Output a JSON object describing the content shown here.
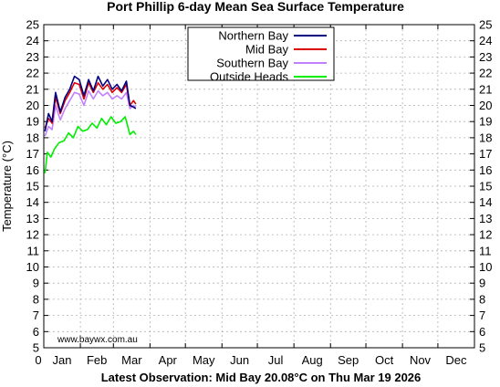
{
  "chart_data": {
    "type": "line",
    "title": "Port Phillip 6-day Mean Sea Surface Temperature",
    "ylabel": "Temperature (°C)",
    "xlabel": "Latest Observation: Mid Bay 20.08°C on Thu Mar 19 2026",
    "credit": "www.baywx.com.au",
    "xlim": [
      0,
      365
    ],
    "ylim": [
      5,
      25
    ],
    "yticks": [
      5,
      6,
      7,
      8,
      9,
      10,
      11,
      12,
      13,
      14,
      15,
      16,
      17,
      18,
      19,
      20,
      21,
      22,
      23,
      24,
      25
    ],
    "x_zero_label": "0",
    "months": [
      "Jan",
      "Feb",
      "Mar",
      "Apr",
      "May",
      "Jun",
      "Jul",
      "Aug",
      "Sep",
      "Oct",
      "Nov",
      "Dec"
    ],
    "grid": true,
    "legend_position": "top-center",
    "series": [
      {
        "name": "Northern Bay",
        "color": "#000080",
        "x": [
          1,
          4,
          7,
          10,
          14,
          18,
          22,
          26,
          30,
          34,
          38,
          42,
          46,
          50,
          54,
          58,
          62,
          66,
          70,
          73,
          76,
          78
        ],
        "values": [
          18.4,
          19.5,
          19.0,
          20.8,
          19.6,
          20.5,
          21.0,
          21.8,
          21.6,
          20.6,
          21.6,
          20.9,
          21.8,
          21.2,
          21.6,
          21.0,
          21.3,
          20.9,
          21.5,
          20.0,
          19.9,
          19.8
        ]
      },
      {
        "name": "Mid Bay",
        "color": "#dd0000",
        "x": [
          1,
          4,
          7,
          10,
          14,
          18,
          22,
          26,
          30,
          34,
          38,
          42,
          46,
          50,
          54,
          58,
          62,
          66,
          70,
          73,
          76,
          78
        ],
        "values": [
          18.6,
          19.2,
          18.9,
          20.5,
          19.5,
          20.3,
          20.8,
          21.4,
          21.3,
          20.4,
          21.4,
          20.8,
          21.4,
          21.0,
          21.3,
          20.8,
          21.1,
          20.8,
          21.3,
          20.0,
          20.3,
          20.08
        ]
      },
      {
        "name": "Southern Bay",
        "color": "#c080ff",
        "x": [
          1,
          4,
          7,
          10,
          14,
          18,
          22,
          26,
          30,
          34,
          38,
          42,
          46,
          50,
          54,
          58,
          62,
          66,
          70,
          73,
          76,
          78
        ],
        "values": [
          18.1,
          18.7,
          18.5,
          20.0,
          19.1,
          19.8,
          20.3,
          20.8,
          20.7,
          20.0,
          20.9,
          20.4,
          20.9,
          20.6,
          20.8,
          20.4,
          20.6,
          20.4,
          20.8,
          19.8,
          20.0,
          19.9
        ]
      },
      {
        "name": "Outside Heads",
        "color": "#00ee00",
        "x": [
          1,
          3,
          6,
          9,
          13,
          17,
          21,
          25,
          29,
          33,
          37,
          41,
          45,
          49,
          53,
          57,
          61,
          65,
          69,
          73,
          76,
          78
        ],
        "values": [
          15.8,
          17.1,
          16.8,
          17.3,
          17.7,
          17.8,
          18.3,
          18.0,
          18.7,
          18.4,
          18.5,
          18.9,
          18.6,
          19.2,
          18.8,
          19.3,
          18.9,
          19.0,
          19.3,
          18.2,
          18.4,
          18.2
        ]
      }
    ]
  }
}
